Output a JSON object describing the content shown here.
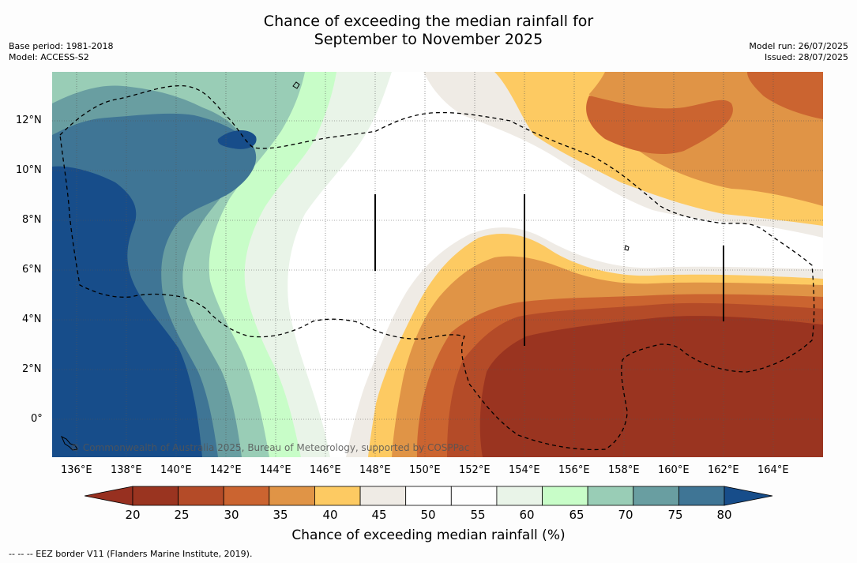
{
  "title_line1": "Chance of exceeding the median rainfall for",
  "title_line2": "September to November 2025",
  "base_period": "Base period: 1981-2018",
  "model": "Model: ACCESS-S2",
  "model_run": "Model run: 26/07/2025",
  "issued": "Issued: 28/07/2025",
  "copyright": "© Commonwealth of Australia 2025, Bureau of Meteorology, supported by COSPPac",
  "footnote": "--  --  -- EEZ border V11 (Flanders Marine Institute, 2019).",
  "colorbar_label": "Chance of exceeding median rainfall (%)",
  "colorbar_ticks": [
    "20",
    "25",
    "30",
    "35",
    "40",
    "45",
    "50",
    "55",
    "60",
    "65",
    "70",
    "75",
    "80"
  ],
  "colorbar_colors": [
    "#9a3420",
    "#b44b28",
    "#cb6430",
    "#e09446",
    "#fdca62",
    "#efebe5",
    "#ffffff",
    "#fefefe",
    "#e9f4e8",
    "#c8fdc8",
    "#99cdb6",
    "#699ea1",
    "#3f7595"
  ],
  "colorbar_extend_colors": {
    "low": "#973020",
    "high": "#174d8a"
  },
  "x_ticks": [
    "136°E",
    "138°E",
    "140°E",
    "142°E",
    "144°E",
    "146°E",
    "148°E",
    "150°E",
    "152°E",
    "154°E",
    "156°E",
    "158°E",
    "160°E",
    "162°E",
    "164°E"
  ],
  "y_ticks": [
    "12°N",
    "10°N",
    "8°N",
    "6°N",
    "4°N",
    "2°N",
    "0°"
  ],
  "map_colors": {
    "dark_blue": "#174d8a",
    "mid_blue": "#3f7595",
    "teal": "#699ea1",
    "green_gray": "#99cdb6",
    "light_green": "#c8fdc8",
    "pale_green": "#e9f4e8",
    "white": "#ffffff",
    "off_white": "#efebe5",
    "yellow": "#fdca62",
    "orange": "#e09446",
    "red_orange": "#cb6430",
    "brown": "#b44b28",
    "dark_brown": "#9a3420"
  }
}
